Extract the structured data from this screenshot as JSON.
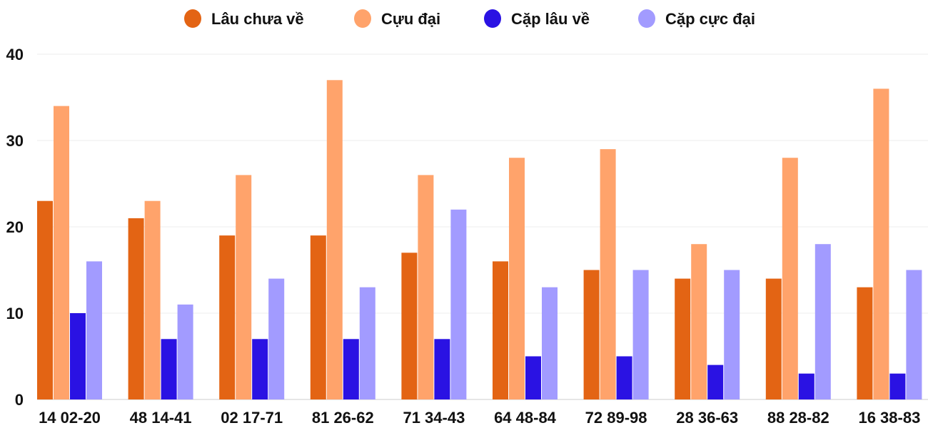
{
  "chart_data": {
    "type": "bar",
    "title": "",
    "xlabel": "",
    "ylabel": "",
    "ylim": [
      0,
      40
    ],
    "yticks": [
      0,
      10,
      20,
      30,
      40
    ],
    "grid": true,
    "legend_position": "top",
    "categories": [
      "14 02-20",
      "48 14-41",
      "02 17-71",
      "81 26-62",
      "71 34-43",
      "64 48-84",
      "72 89-98",
      "28 36-63",
      "88 28-82",
      "16 38-83"
    ],
    "series": [
      {
        "name": "Lâu chưa về",
        "color": "#e36414",
        "values": [
          23,
          21,
          19,
          19,
          17,
          16,
          15,
          14,
          14,
          13
        ]
      },
      {
        "name": "Cựu đại",
        "color": "#ffa36b",
        "values": [
          34,
          23,
          26,
          37,
          26,
          28,
          29,
          18,
          28,
          36
        ]
      },
      {
        "name": "Cặp lâu về",
        "color": "#2a12e3",
        "values": [
          10,
          7,
          7,
          7,
          7,
          5,
          5,
          4,
          3,
          3
        ]
      },
      {
        "name": "Cặp cực đại",
        "color": "#a29bff",
        "values": [
          16,
          11,
          14,
          13,
          22,
          13,
          15,
          15,
          18,
          15
        ]
      }
    ]
  }
}
